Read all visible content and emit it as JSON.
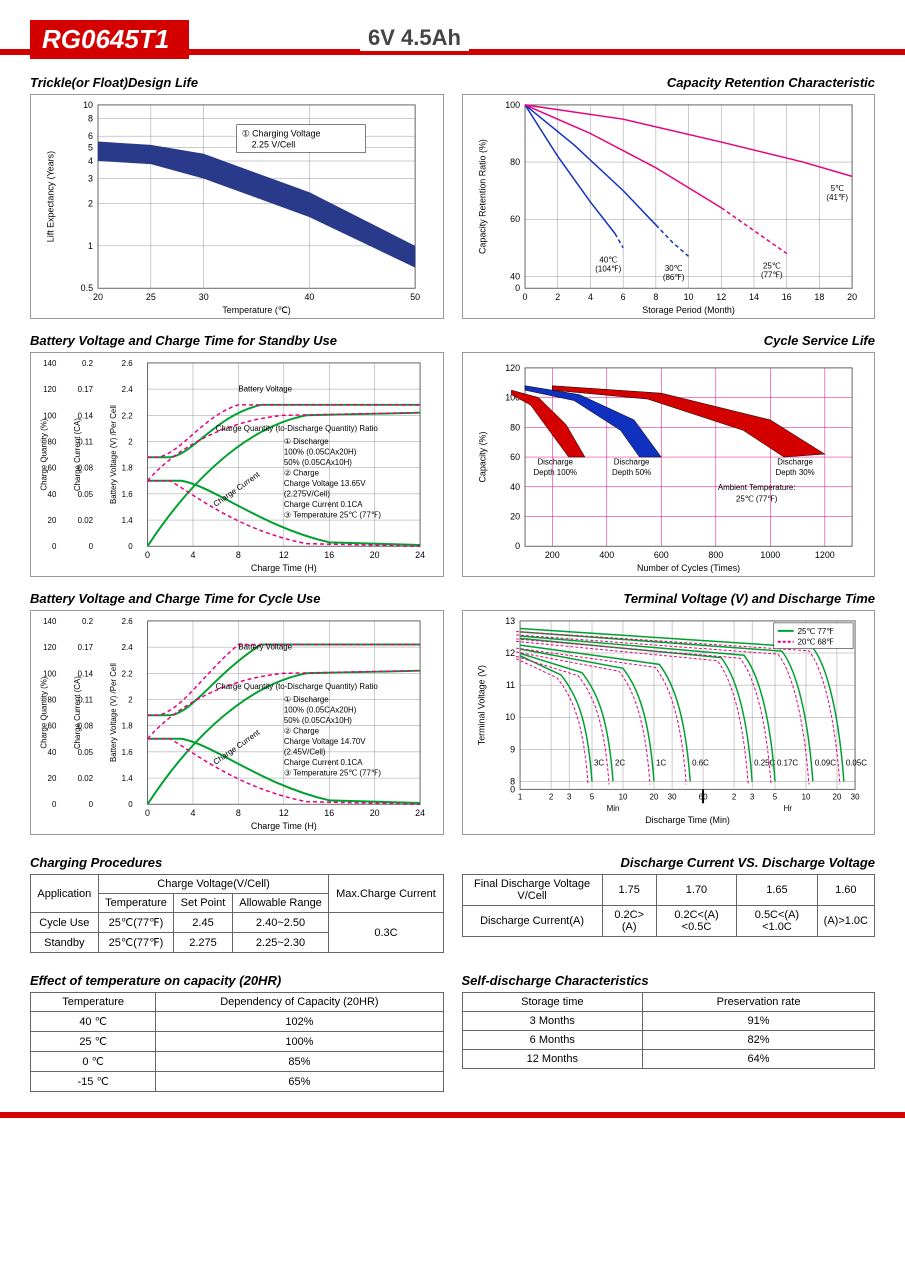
{
  "header": {
    "model": "RG0645T1",
    "spec": "6V  4.5Ah"
  },
  "chart1": {
    "title": "Trickle(or Float)Design Life",
    "xlabel": "Temperature (℃)",
    "ylabel": "Lift Expectancy (Years)",
    "legend": "① Charging Voltage 2.25 V/Cell",
    "xticks": [
      20,
      25,
      30,
      40,
      50
    ],
    "yticks": [
      0.5,
      1,
      2,
      3,
      4,
      5,
      6,
      8,
      10
    ],
    "band_upper": [
      [
        20,
        5.5
      ],
      [
        25,
        5.2
      ],
      [
        30,
        4.5
      ],
      [
        40,
        2.4
      ],
      [
        50,
        1.0
      ]
    ],
    "band_lower": [
      [
        20,
        4.0
      ],
      [
        25,
        3.8
      ],
      [
        30,
        3.0
      ],
      [
        40,
        1.6
      ],
      [
        50,
        0.7
      ]
    ],
    "band_color": "#2a3a8a",
    "bg": "#ffffff",
    "grid": "#999"
  },
  "chart2": {
    "title": "Capacity Retention Characteristic",
    "xlabel": "Storage Period (Month)",
    "ylabel": "Capacity Retention Ratio (%)",
    "xticks": [
      0,
      2,
      4,
      6,
      8,
      10,
      12,
      14,
      16,
      18,
      20
    ],
    "yticks": [
      0,
      40,
      60,
      80,
      100
    ],
    "lines": [
      {
        "label": "40℃ (104℉)",
        "color": "#1030c0",
        "pts": [
          [
            0,
            100
          ],
          [
            2,
            82
          ],
          [
            4,
            66
          ],
          [
            5.5,
            55
          ],
          [
            6,
            50
          ]
        ],
        "dash_after": 5.5
      },
      {
        "label": "30℃ (86℉)",
        "color": "#1030c0",
        "pts": [
          [
            0,
            100
          ],
          [
            3,
            86
          ],
          [
            6,
            70
          ],
          [
            8,
            58
          ],
          [
            9,
            52
          ],
          [
            10,
            47
          ]
        ],
        "dash_after": 8
      },
      {
        "label": "25℃ (77℉)",
        "color": "#e6007e",
        "pts": [
          [
            0,
            100
          ],
          [
            4,
            90
          ],
          [
            8,
            78
          ],
          [
            12,
            64
          ],
          [
            14,
            56
          ],
          [
            16,
            48
          ]
        ],
        "dash_after": 12
      },
      {
        "label": "5℃ (41℉)",
        "color": "#e6007e",
        "pts": [
          [
            0,
            100
          ],
          [
            6,
            95
          ],
          [
            12,
            87
          ],
          [
            17,
            80
          ],
          [
            20,
            75
          ]
        ],
        "dash_after": 99
      }
    ],
    "grid": "#999"
  },
  "chart3": {
    "title": "Battery Voltage and Charge Time for Standby Use",
    "xlabel": "Charge Time (H)",
    "y1": "Charge Quantity (%)",
    "y2": "Charge Current (CA)",
    "y3": "Battery Voltage (V) /Per Cell",
    "xticks": [
      0,
      4,
      8,
      12,
      16,
      20,
      24
    ],
    "y1ticks": [
      0,
      20,
      40,
      60,
      80,
      100,
      120,
      140
    ],
    "y2ticks": [
      0,
      0.02,
      0.05,
      0.08,
      0.11,
      0.14,
      0.17,
      0.2
    ],
    "y3ticks": [
      0,
      1.4,
      1.6,
      1.8,
      2.0,
      2.2,
      2.4,
      2.6
    ],
    "legend_lines": [
      "① Discharge",
      "   100% (0.05CAx20H)",
      "   50% (0.05CAx10H)",
      "② Charge",
      "   Charge Voltage 13.65V",
      "   (2.275V/Cell)",
      "   Charge Current 0.1CA",
      "③ Temperature 25℃ (77℉)"
    ],
    "curve_labels": [
      "Battery Voltage",
      "Charge Quantity (to-Discharge Quantity) Ratio",
      "Charge Current"
    ],
    "green": "#00a030",
    "pink": "#e6007e",
    "grid": "#999"
  },
  "chart4": {
    "title": "Cycle Service Life",
    "xlabel": "Number of Cycles (Times)",
    "ylabel": "Capacity (%)",
    "xticks": [
      200,
      400,
      600,
      800,
      1000,
      1200
    ],
    "yticks": [
      0,
      20,
      40,
      60,
      80,
      100,
      120
    ],
    "bands": [
      {
        "label": "Discharge Depth 100%",
        "color": "#d40000",
        "upper": [
          [
            50,
            105
          ],
          [
            150,
            100
          ],
          [
            250,
            82
          ],
          [
            320,
            60
          ]
        ],
        "lower": [
          [
            50,
            102
          ],
          [
            120,
            95
          ],
          [
            200,
            75
          ],
          [
            260,
            60
          ]
        ]
      },
      {
        "label": "Discharge Depth 50%",
        "color": "#1030c0",
        "upper": [
          [
            100,
            108
          ],
          [
            300,
            102
          ],
          [
            500,
            85
          ],
          [
            600,
            60
          ]
        ],
        "lower": [
          [
            100,
            105
          ],
          [
            280,
            98
          ],
          [
            450,
            78
          ],
          [
            520,
            60
          ]
        ]
      },
      {
        "label": "Discharge Depth 30%",
        "color": "#d40000",
        "upper": [
          [
            200,
            108
          ],
          [
            600,
            103
          ],
          [
            1000,
            85
          ],
          [
            1200,
            62
          ]
        ],
        "lower": [
          [
            200,
            105
          ],
          [
            550,
            99
          ],
          [
            900,
            78
          ],
          [
            1050,
            60
          ]
        ]
      }
    ],
    "ambient": "Ambient Temperature: 25℃ (77℉)",
    "grid": "#e6007e"
  },
  "chart5": {
    "title": "Battery Voltage and Charge Time for Cycle Use",
    "xlabel": "Charge Time (H)",
    "legend_lines": [
      "① Discharge",
      "   100% (0.05CAx20H)",
      "   50% (0.05CAx10H)",
      "② Charge",
      "   Charge Voltage 14.70V",
      "   (2.45V/Cell)",
      "   Charge Current 0.1CA",
      "③ Temperature 25℃ (77℉)"
    ],
    "green": "#00a030",
    "pink": "#e6007e",
    "grid": "#999"
  },
  "chart6": {
    "title": "Terminal Voltage (V) and Discharge Time",
    "xlabel": "Discharge Time (Min)",
    "ylabel": "Terminal Voltage (V)",
    "yticks": [
      0,
      8,
      9,
      10,
      11,
      12,
      13
    ],
    "legend": [
      {
        "label": "25℃ 77℉",
        "color": "#00a030"
      },
      {
        "label": "20℃ 68℉",
        "color": "#e6007e"
      }
    ],
    "curve_labels": [
      "3C",
      "2C",
      "1C",
      "0.6C",
      "0.25C",
      "0.17C",
      "0.09C",
      "0.05C"
    ],
    "time_labels_min": [
      "1",
      "2",
      "3",
      "5",
      "10",
      "20",
      "30",
      "60"
    ],
    "time_labels_hr": [
      "2",
      "3",
      "5",
      "10",
      "20",
      "30"
    ],
    "grid": "#999"
  },
  "table_charging": {
    "title": "Charging Procedures",
    "headers": {
      "app": "Application",
      "cvc": "Charge Voltage(V/Cell)",
      "temp": "Temperature",
      "sp": "Set Point",
      "ar": "Allowable Range",
      "max": "Max.Charge Current"
    },
    "rows": [
      {
        "app": "Cycle Use",
        "temp": "25℃(77℉)",
        "sp": "2.45",
        "ar": "2.40~2.50"
      },
      {
        "app": "Standby",
        "temp": "25℃(77℉)",
        "sp": "2.275",
        "ar": "2.25~2.30"
      }
    ],
    "max": "0.3C"
  },
  "table_discharge": {
    "title": "Discharge Current VS. Discharge Voltage",
    "r1_label": "Final Discharge Voltage V/Cell",
    "r1": [
      "1.75",
      "1.70",
      "1.65",
      "1.60"
    ],
    "r2_label": "Discharge Current(A)",
    "r2": [
      "0.2C>(A)",
      "0.2C<(A)<0.5C",
      "0.5C<(A)<1.0C",
      "(A)>1.0C"
    ]
  },
  "table_temp": {
    "title": "Effect of temperature on capacity (20HR)",
    "h1": "Temperature",
    "h2": "Dependency of Capacity (20HR)",
    "rows": [
      [
        "40 ℃",
        "102%"
      ],
      [
        "25 ℃",
        "100%"
      ],
      [
        "0 ℃",
        "85%"
      ],
      [
        "-15 ℃",
        "65%"
      ]
    ]
  },
  "table_self": {
    "title": "Self-discharge Characteristics",
    "h1": "Storage time",
    "h2": "Preservation rate",
    "rows": [
      [
        "3 Months",
        "91%"
      ],
      [
        "6 Months",
        "82%"
      ],
      [
        "12 Months",
        "64%"
      ]
    ]
  }
}
